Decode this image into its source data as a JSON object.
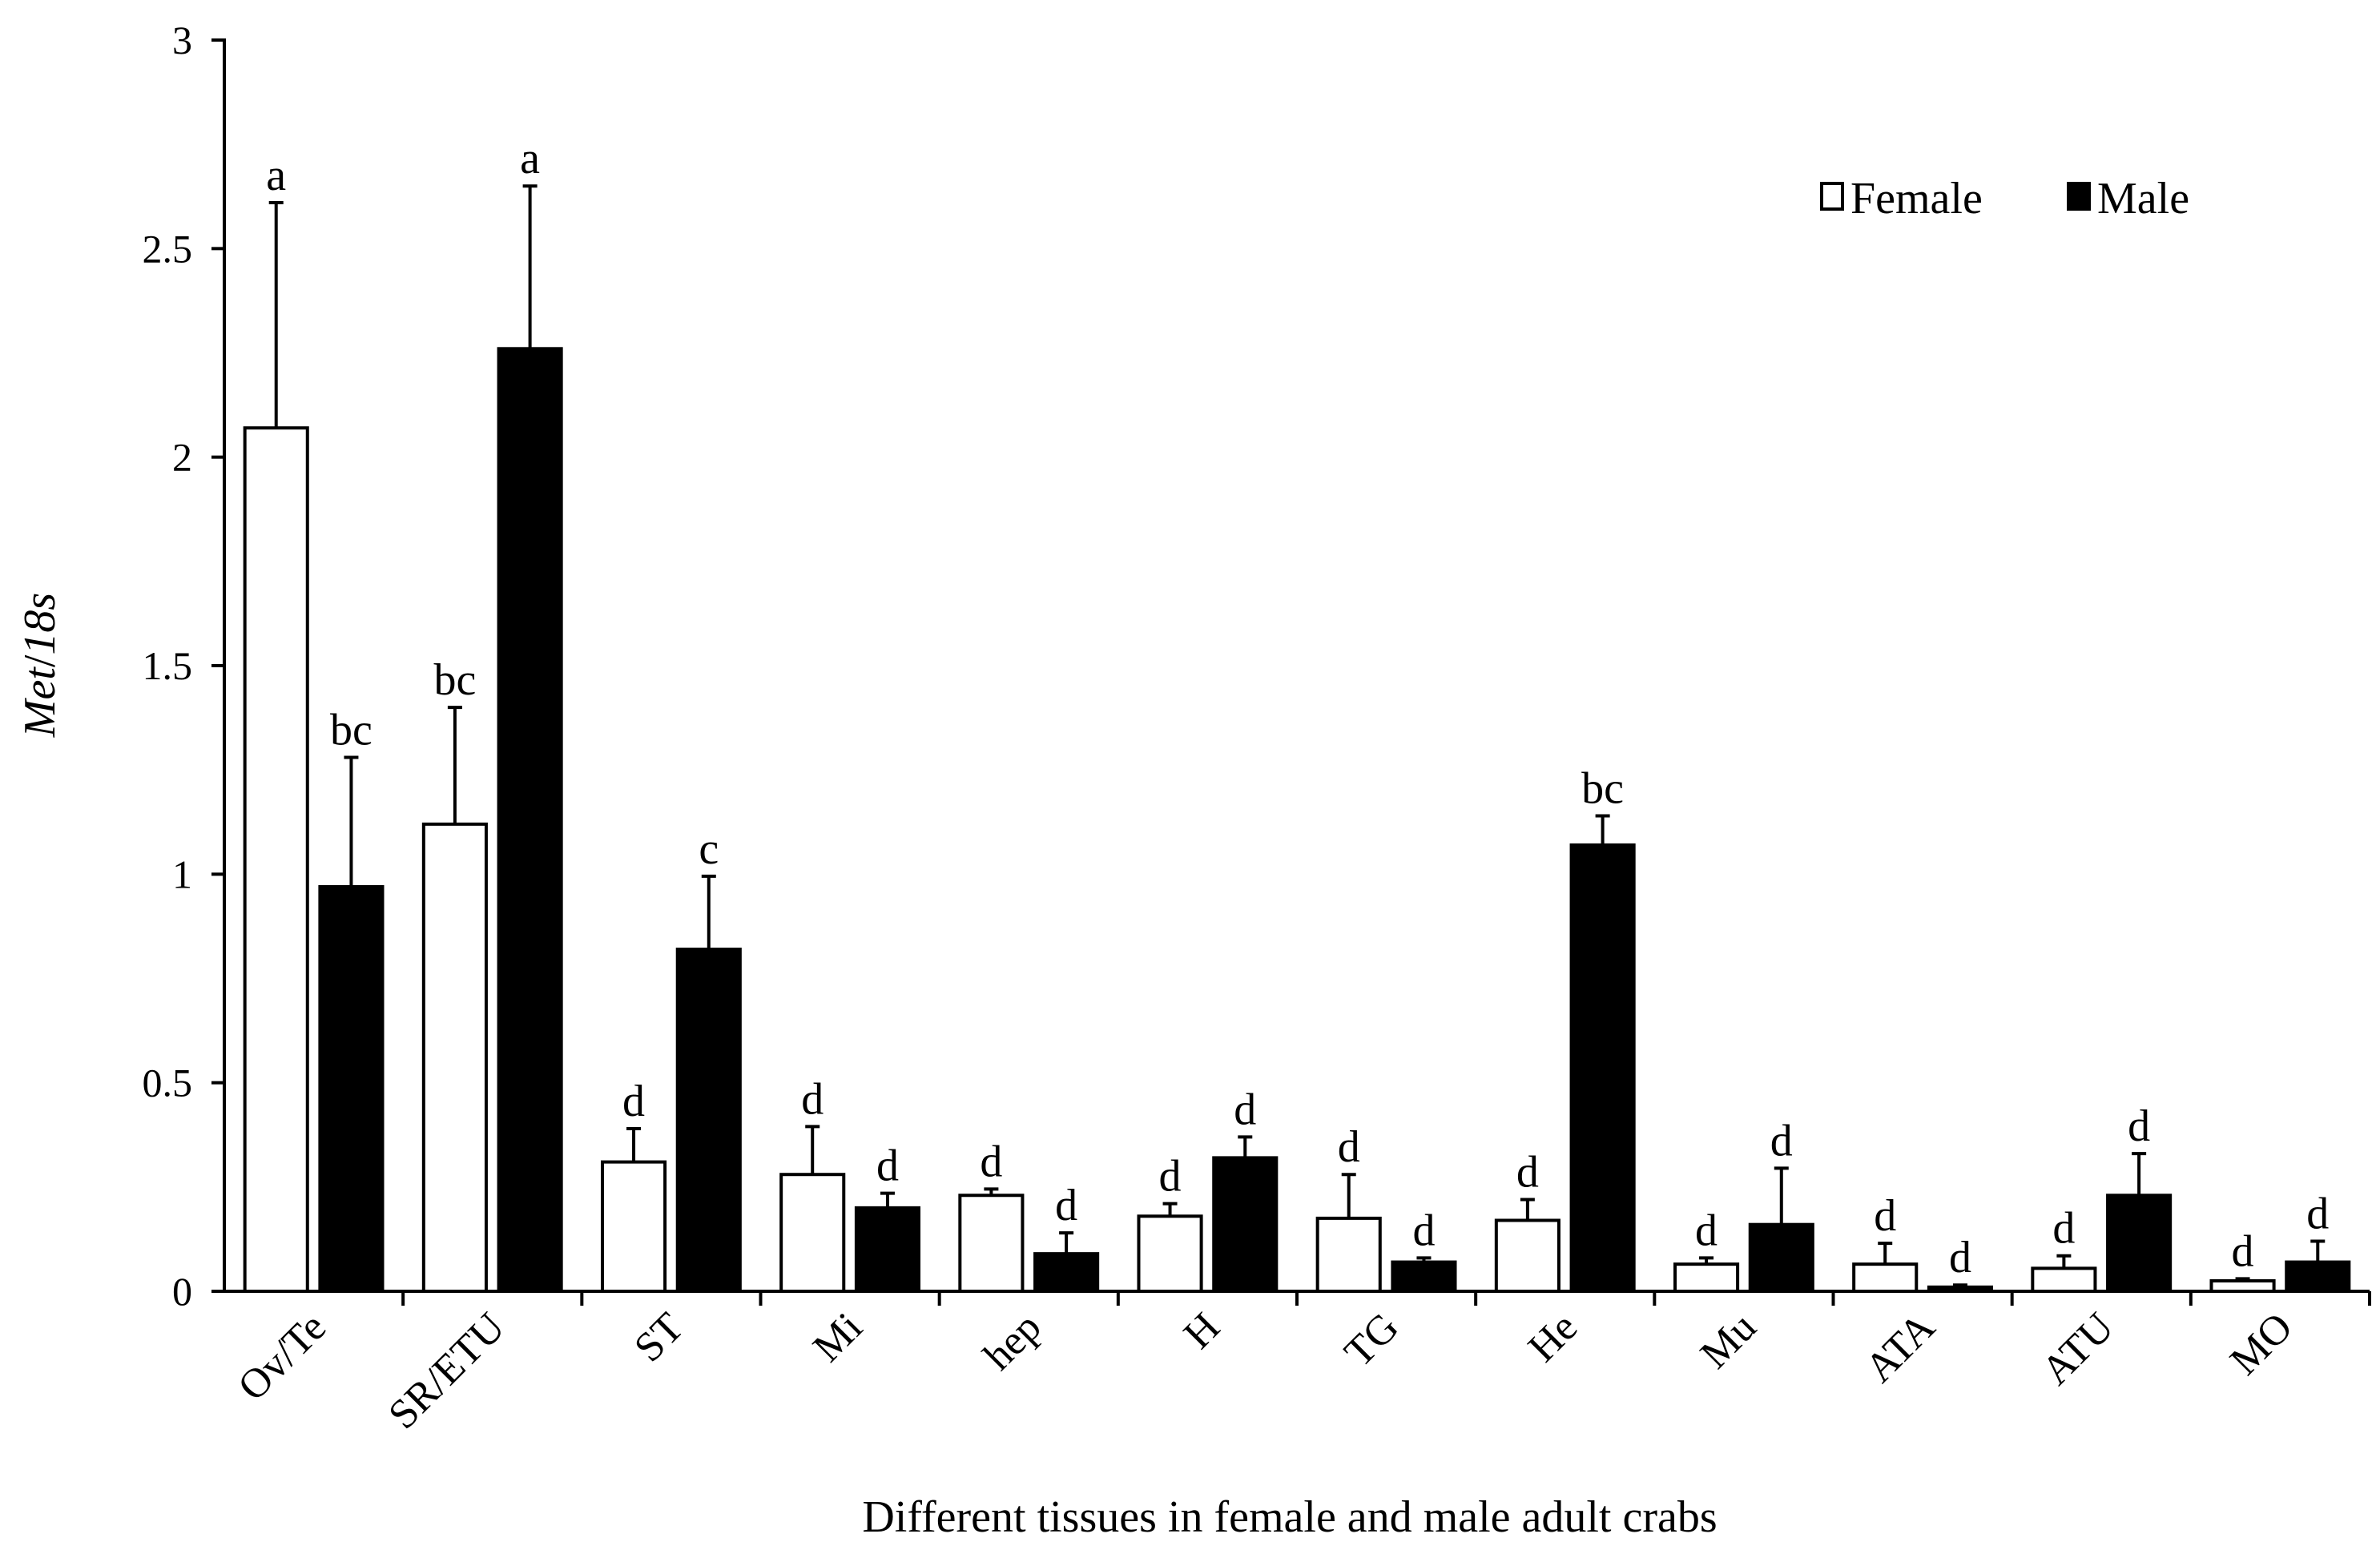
{
  "chart_data": {
    "type": "bar",
    "title": "",
    "xlabel": "Different tissues in female and male adult crabs",
    "ylabel_parts": [
      "Met",
      "/",
      "18s"
    ],
    "ylim": [
      0,
      3
    ],
    "yticks": [
      0,
      0.5,
      1,
      1.5,
      2,
      2.5,
      3
    ],
    "ytick_labels": [
      "0",
      "0.5",
      "1",
      "1.5",
      "2",
      "2.5",
      "3"
    ],
    "legend_position": "top-right",
    "categories": [
      "Ov/Te",
      "SR/ETU",
      "ST",
      "Mi",
      "hep",
      "H",
      "TG",
      "He",
      "Mu",
      "ATA",
      "ATU",
      "MO"
    ],
    "series": [
      {
        "name": "Female",
        "fill": "#ffffff",
        "values": [
          2.07,
          1.12,
          0.31,
          0.28,
          0.23,
          0.18,
          0.175,
          0.17,
          0.065,
          0.065,
          0.055,
          0.025
        ],
        "errors": [
          0.54,
          0.28,
          0.08,
          0.115,
          0.015,
          0.03,
          0.105,
          0.05,
          0.015,
          0.05,
          0.03,
          0.005
        ],
        "labels": [
          "a",
          "bc",
          "d",
          "d",
          "d",
          "d",
          "d",
          "d",
          "d",
          "d",
          "d",
          "d"
        ]
      },
      {
        "name": "Male",
        "fill": "#000000",
        "values": [
          0.97,
          2.26,
          0.82,
          0.2,
          0.09,
          0.32,
          0.07,
          1.07,
          0.16,
          0.01,
          0.23,
          0.07
        ],
        "errors": [
          0.31,
          0.39,
          0.175,
          0.035,
          0.05,
          0.05,
          0.01,
          0.07,
          0.135,
          0.005,
          0.1,
          0.05
        ],
        "labels": [
          "bc",
          "a",
          "c",
          "d",
          "d",
          "d",
          "d",
          "bc",
          "d",
          "d",
          "d",
          "d"
        ]
      }
    ]
  }
}
